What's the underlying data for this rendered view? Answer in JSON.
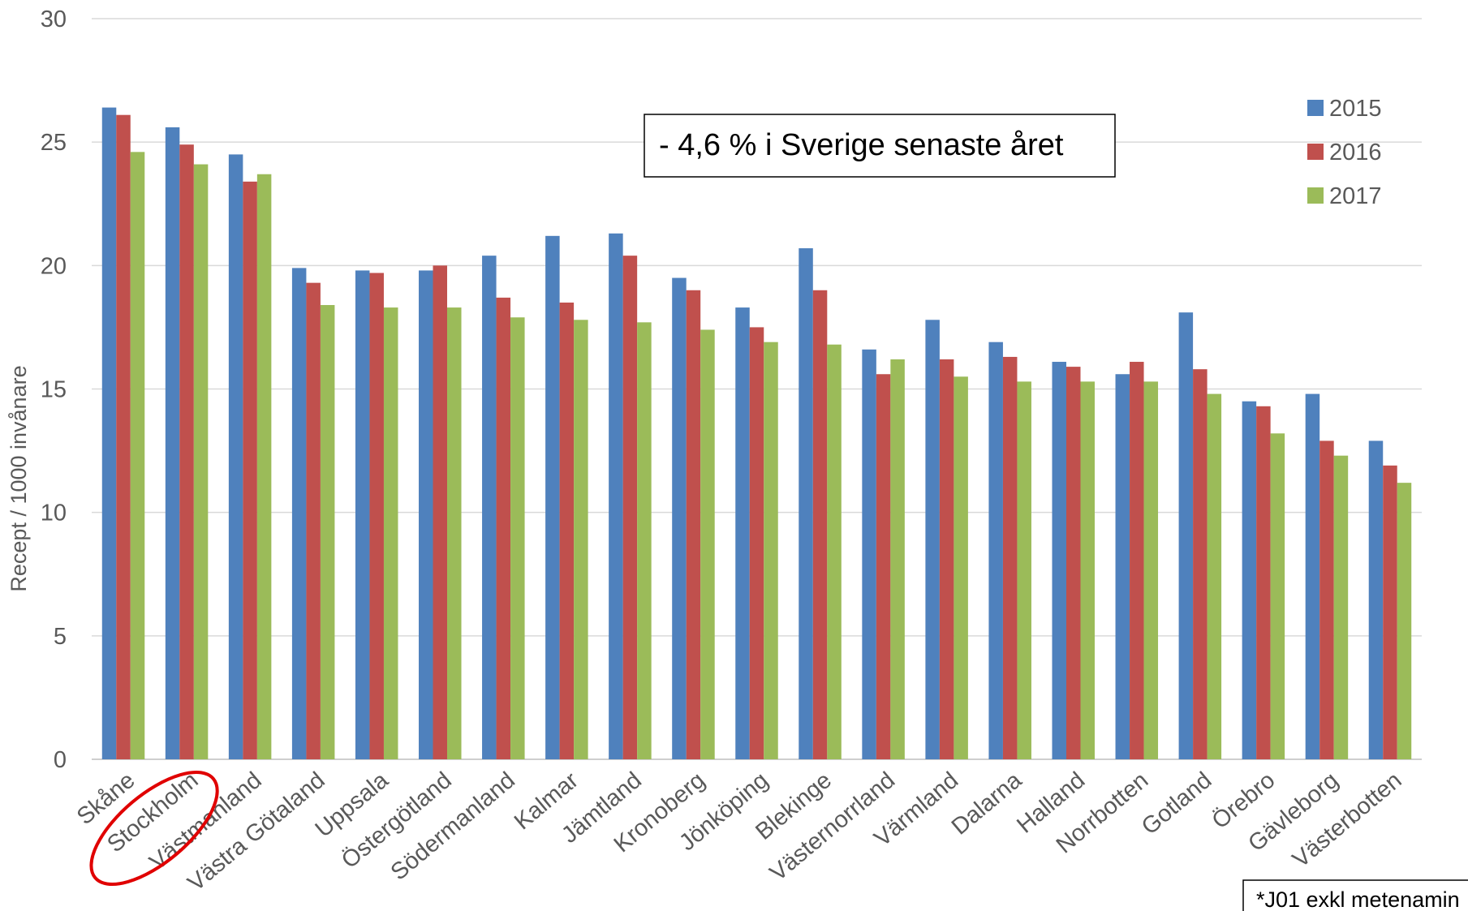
{
  "chart_data": {
    "type": "bar",
    "ylabel": "Recept / 1000 invånare",
    "ylim": [
      0,
      30
    ],
    "yticks": [
      0,
      5,
      10,
      15,
      20,
      25,
      30
    ],
    "grid": true,
    "legend_position": "top-right",
    "categories": [
      "Skåne",
      "Stockholm",
      "Västmanland",
      "Västra Götaland",
      "Uppsala",
      "Östergötland",
      "Södermanland",
      "Kalmar",
      "Jämtland",
      "Kronoberg",
      "Jönköping",
      "Blekinge",
      "Västernorrland",
      "Värmland",
      "Dalarna",
      "Halland",
      "Norrbotten",
      "Gotland",
      "Örebro",
      "Gävleborg",
      "Västerbotten"
    ],
    "series": [
      {
        "name": "2015",
        "color": "#4f81bd",
        "values": [
          26.4,
          25.6,
          24.5,
          19.9,
          19.8,
          19.8,
          20.4,
          21.2,
          21.3,
          19.5,
          18.3,
          20.7,
          16.6,
          17.8,
          16.9,
          16.1,
          15.6,
          18.1,
          14.5,
          14.8,
          12.9
        ]
      },
      {
        "name": "2016",
        "color": "#c0504d",
        "values": [
          26.1,
          24.9,
          23.4,
          19.3,
          19.7,
          20.0,
          18.7,
          18.5,
          20.4,
          19.0,
          17.5,
          19.0,
          15.6,
          16.2,
          16.3,
          15.9,
          16.1,
          15.8,
          14.3,
          12.9,
          11.9
        ]
      },
      {
        "name": "2017",
        "color": "#9bbb59",
        "values": [
          24.6,
          24.1,
          23.7,
          18.4,
          18.3,
          18.3,
          17.9,
          17.8,
          17.7,
          17.4,
          16.9,
          16.8,
          16.2,
          15.5,
          15.3,
          15.3,
          15.3,
          14.8,
          13.2,
          12.3,
          11.2
        ]
      }
    ],
    "annotations": {
      "box_text": "- 4,6 % i Sverige senaste året",
      "footnote": "*J01 exkl metenamin",
      "highlighted_category": "Stockholm",
      "highlight_color": "#e00000"
    }
  }
}
